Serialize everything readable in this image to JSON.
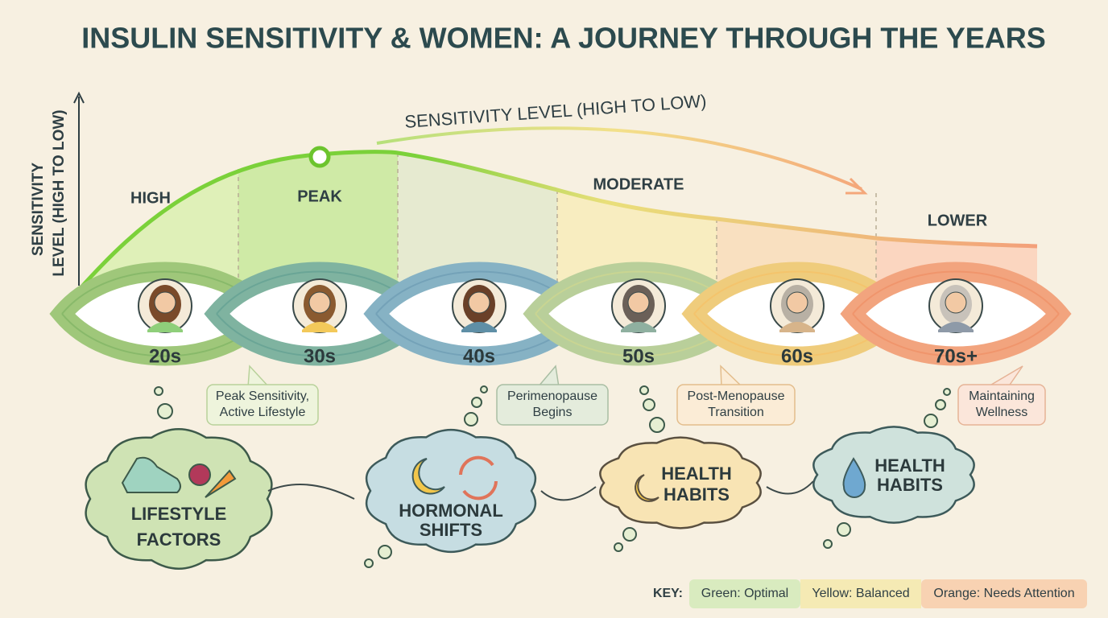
{
  "header": {
    "title": "INSULIN SENSITIVITY & WOMEN: A JOURNEY THROUGH THE YEARS"
  },
  "axis": {
    "label_lines": [
      "SENSITIVITY",
      "LEVEL (HIGH TO LOW)"
    ]
  },
  "curve_label": "SENSITIVITY LEVEL (HIGH TO LOW)",
  "levels": [
    "HIGH",
    "PEAK",
    "MODERATE",
    "LOWER"
  ],
  "decades": [
    "20s",
    "30s",
    "40s",
    "50s",
    "60s",
    "70s+"
  ],
  "callouts": [
    [
      "Peak Sensitivity,",
      "Active Lifestyle"
    ],
    [
      "Perimenopause",
      "Begins"
    ],
    [
      "Post-Menopause",
      "Transition"
    ],
    [
      "Maintaining",
      "Wellness"
    ]
  ],
  "clouds": [
    [
      "LIFESTYLE",
      "FACTORS"
    ],
    [
      "HORMONAL",
      "SHIFTS"
    ],
    [
      "HEALTH",
      "HABITS"
    ],
    [
      "HEALTH",
      "HABITS"
    ]
  ],
  "key": {
    "label": "KEY:",
    "items": [
      "Green: Optimal",
      "Yellow: Balanced",
      "Orange: Needs Attention"
    ]
  }
}
